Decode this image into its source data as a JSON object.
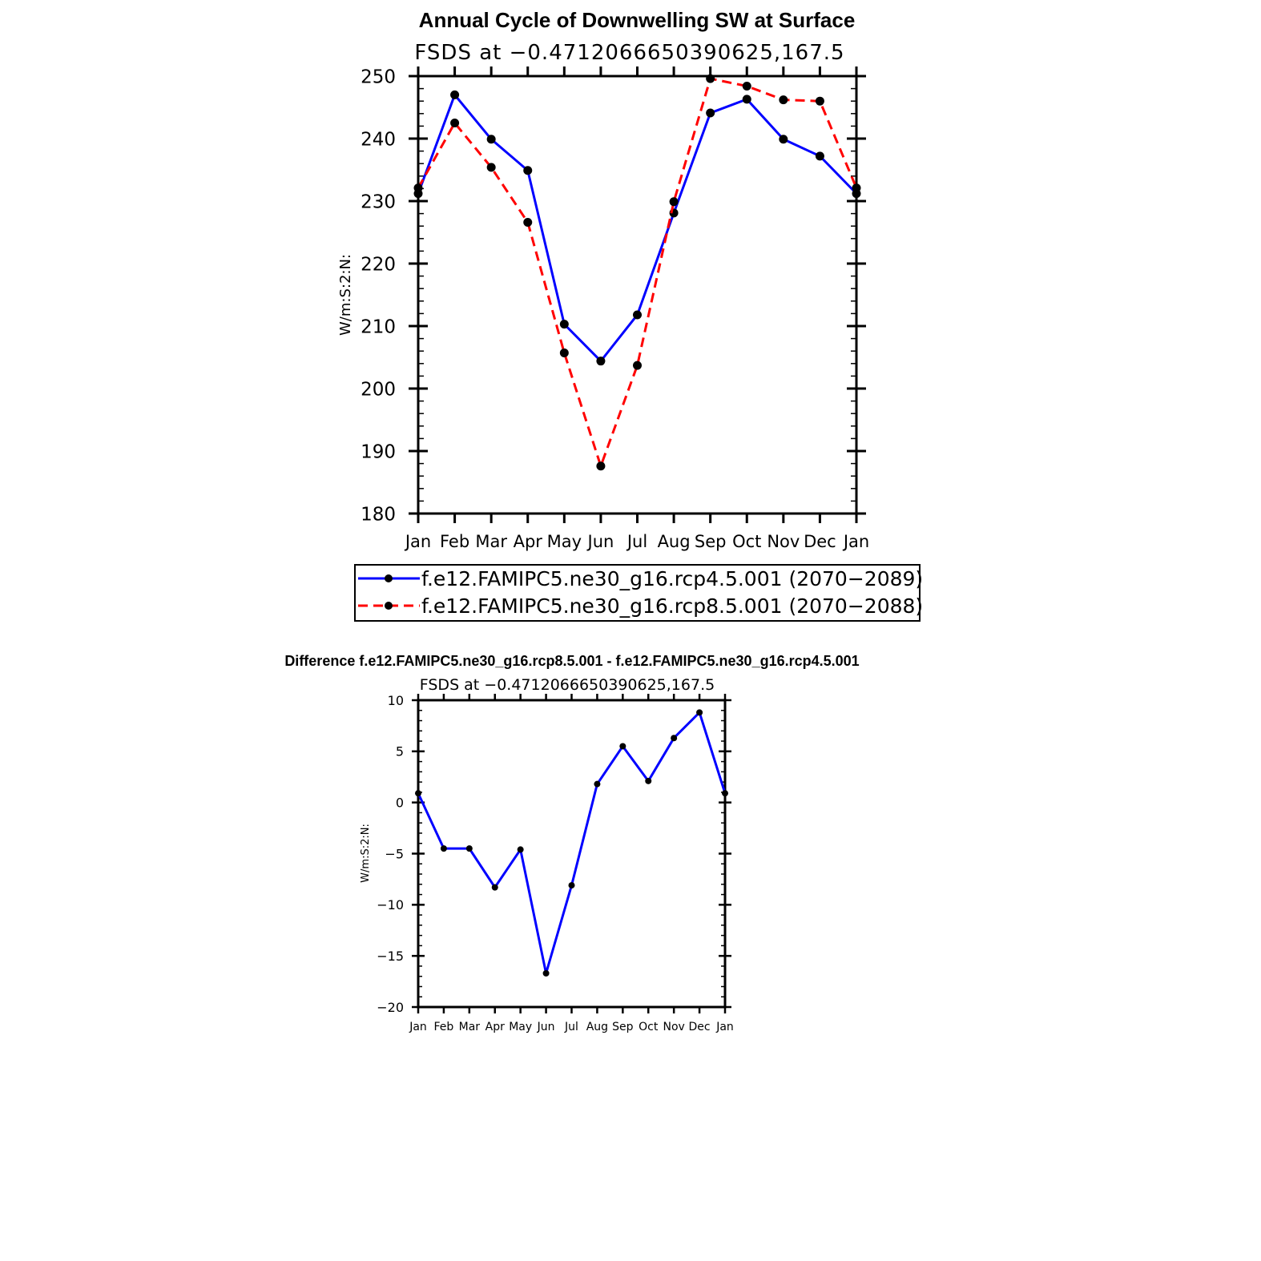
{
  "chart_data": [
    {
      "type": "line",
      "title": "Annual Cycle of Downwelling SW at Surface",
      "subtitle": "FSDS at −0.4712066650390625,167.5",
      "ylabel": "W/m:S:2:N:",
      "xlabel": "",
      "categories": [
        "Jan",
        "Feb",
        "Mar",
        "Apr",
        "May",
        "Jun",
        "Jul",
        "Aug",
        "Sep",
        "Oct",
        "Nov",
        "Dec",
        "Jan"
      ],
      "ylim": [
        180,
        250
      ],
      "yticks": [
        "180",
        "190",
        "200",
        "210",
        "220",
        "230",
        "240",
        "250"
      ],
      "grid": false,
      "legend_position": "bottom",
      "series": [
        {
          "name": "f.e12.FAMIPC5.ne30_g16.rcp4.5.001 (2070−2089)",
          "color": "#0000ff",
          "dash": "solid",
          "values": [
            231.2,
            247.0,
            239.9,
            234.9,
            210.3,
            204.4,
            211.8,
            228.1,
            244.1,
            246.3,
            239.9,
            237.2,
            231.2
          ]
        },
        {
          "name": "f.e12.FAMIPC5.ne30_g16.rcp8.5.001 (2070−2088)",
          "color": "#ff0000",
          "dash": "dashed",
          "values": [
            232.1,
            242.5,
            235.4,
            226.6,
            205.7,
            187.6,
            203.7,
            229.9,
            249.6,
            248.4,
            246.2,
            246.0,
            232.1
          ]
        }
      ]
    },
    {
      "type": "line",
      "title": "Difference f.e12.FAMIPC5.ne30_g16.rcp8.5.001 - f.e12.FAMIPC5.ne30_g16.rcp4.5.001",
      "subtitle": "FSDS at −0.4712066650390625,167.5",
      "ylabel": "W/m:S:2:N:",
      "xlabel": "",
      "categories": [
        "Jan",
        "Feb",
        "Mar",
        "Apr",
        "May",
        "Jun",
        "Jul",
        "Aug",
        "Sep",
        "Oct",
        "Nov",
        "Dec",
        "Jan"
      ],
      "ylim": [
        -20,
        10
      ],
      "yticks": [
        "−20",
        "−15",
        "−10",
        "−5",
        "0",
        "5",
        "10"
      ],
      "grid": false,
      "series": [
        {
          "color": "#0000ff",
          "dash": "solid",
          "values": [
            0.9,
            -4.5,
            -4.5,
            -8.3,
            -4.6,
            -16.7,
            -8.1,
            1.8,
            5.5,
            2.1,
            6.3,
            8.8,
            0.9
          ]
        }
      ]
    }
  ]
}
